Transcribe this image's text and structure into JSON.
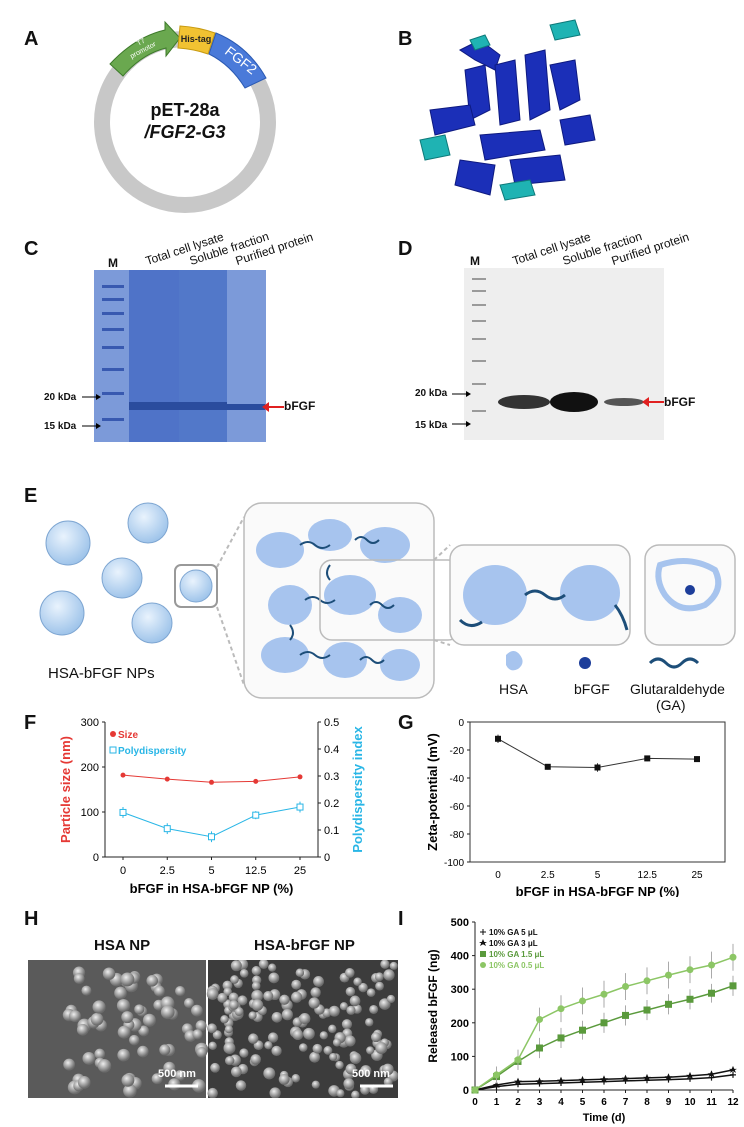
{
  "panels": {
    "A": "A",
    "B": "B",
    "C": "C",
    "D": "D",
    "E": "E",
    "F": "F",
    "G": "G",
    "H": "H",
    "I": "I"
  },
  "plasmid": {
    "name_line1": "pET-28a",
    "name_line2": "/FGF2-G3",
    "segments": [
      {
        "label_line1": "T7",
        "label_line2": "promotor",
        "color": "#6aa84f"
      },
      {
        "label": "His-tag",
        "color": "#f1c232"
      },
      {
        "label": "FGF2",
        "color": "#4a7ad9"
      }
    ],
    "ring_color": "#c8c8c8"
  },
  "gel_C": {
    "marker": "M",
    "lanes": [
      "Total cell lysate",
      "Soluble fraction",
      "Purified  protein"
    ],
    "kda_20": "20 kDa",
    "kda_15": "15 kDa",
    "band": "bFGF",
    "color": "#4a70c0"
  },
  "gel_D": {
    "marker": "M",
    "lanes": [
      "Total cell lysate",
      "Soluble fraction",
      "Purified protein"
    ],
    "kda_20": "20 kDa",
    "kda_15": "15 kDa",
    "band": "bFGF"
  },
  "schematic": {
    "np_label": "HSA-bFGF NPs",
    "legend_hsa": "HSA",
    "legend_bfgf": "bFGF",
    "legend_ga_line1": "Glutaraldehyde",
    "legend_ga_line2": "(GA)",
    "sphere_color": "#bcd8f2",
    "hsa_color": "#a7c4ee",
    "ga_color": "#1d4e79"
  },
  "sem": {
    "left_title": "HSA NP",
    "right_title": "HSA-bFGF NP",
    "scale_left": "500 nm",
    "scale_right": "500 nm"
  },
  "chart_data": [
    {
      "id": "F",
      "type": "line",
      "categories": [
        "0",
        "2.5",
        "5",
        "12.5",
        "25"
      ],
      "xlabel": "bFGF in HSA-bFGF NP (%)",
      "ylabel": "Particle size (nm)",
      "ylabel_right": "Polydispersity index",
      "ylim": [
        0,
        300
      ],
      "yticks": [
        "0",
        "100",
        "200",
        "300"
      ],
      "ylim_right": [
        0,
        0.5
      ],
      "yticks_right": [
        "0",
        "0.1",
        "0.2",
        "0.3",
        "0.4",
        "0.5"
      ],
      "series": [
        {
          "name": "Size",
          "axis": "left",
          "values": [
            182,
            173,
            166,
            168,
            178
          ],
          "errors": [
            4,
            3,
            3,
            3,
            4
          ],
          "color": "#e53935"
        },
        {
          "name": "Polydispersity",
          "axis": "right",
          "values": [
            0.165,
            0.105,
            0.075,
            0.155,
            0.185
          ],
          "errors": [
            0.02,
            0.02,
            0.02,
            0.015,
            0.02
          ],
          "color": "#29b6e6"
        }
      ],
      "legend": "top-left"
    },
    {
      "id": "G",
      "type": "line",
      "categories": [
        "0",
        "2.5",
        "5",
        "12.5",
        "25"
      ],
      "xlabel": "bFGF in HSA-bFGF NP (%)",
      "ylabel": "Zeta-potential (mV)",
      "ylim": [
        -100,
        0
      ],
      "yticks": [
        "0",
        "-20",
        "-40",
        "-60",
        "-80",
        "-100"
      ],
      "series": [
        {
          "values": [
            -12,
            -32,
            -32.5,
            -26,
            -26.5
          ],
          "errors": [
            3,
            2,
            3,
            2,
            2
          ],
          "color": "#111111"
        }
      ]
    },
    {
      "id": "I",
      "type": "line",
      "x": [
        "0",
        "1",
        "2",
        "3",
        "4",
        "5",
        "6",
        "7",
        "8",
        "9",
        "10",
        "11",
        "12"
      ],
      "xlabel": "Time (d)",
      "ylabel": "Released bFGF (ng)",
      "ylim": [
        0,
        500
      ],
      "yticks": [
        "0",
        "100",
        "200",
        "300",
        "400",
        "500"
      ],
      "legend": "top-left",
      "series": [
        {
          "name": "10% GA 5 μL",
          "marker": "cross",
          "color": "#111111",
          "values": [
            0,
            10,
            17,
            19,
            21,
            23,
            25,
            27,
            29,
            31,
            33,
            37,
            45
          ]
        },
        {
          "name": "10% GA 3 μL",
          "marker": "star",
          "color": "#111111",
          "values": [
            0,
            15,
            25,
            26,
            28,
            30,
            32,
            34,
            36,
            38,
            42,
            47,
            60
          ]
        },
        {
          "name": "10% GA 1.5 μL",
          "marker": "square",
          "color": "#5a9a3c",
          "values": [
            0,
            40,
            85,
            125,
            155,
            178,
            200,
            222,
            238,
            255,
            270,
            288,
            310
          ],
          "errors": [
            0,
            20,
            25,
            30,
            30,
            28,
            30,
            30,
            30,
            30,
            30,
            28,
            30
          ]
        },
        {
          "name": "10% GA 0.5 μL",
          "marker": "circle",
          "color": "#8cc665",
          "values": [
            0,
            45,
            90,
            210,
            242,
            265,
            285,
            308,
            325,
            342,
            358,
            372,
            395
          ],
          "errors": [
            0,
            25,
            30,
            35,
            40,
            40,
            40,
            40,
            40,
            40,
            40,
            40,
            40
          ]
        }
      ]
    }
  ]
}
